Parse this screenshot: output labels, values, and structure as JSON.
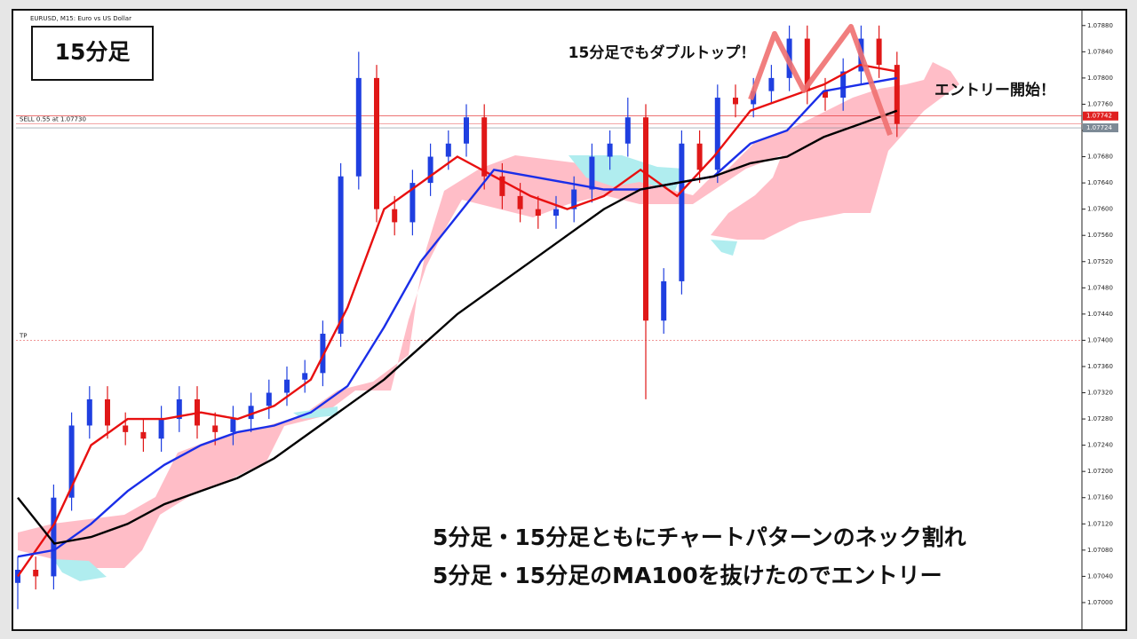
{
  "chart_data": {
    "type": "candlestick",
    "window_title": "EURUSD, M15:  Euro vs US Dollar",
    "title": "15分足",
    "annotations": [
      "15分足でもダブルトップ！",
      "エントリー開始！"
    ],
    "caption": [
      "5分足・15分足ともにチャートパターンのネック割れ",
      "5分足・15分足のMA100を抜けたのでエントリー"
    ],
    "up_color": "#1f3fe0",
    "down_color": "#e01818",
    "open": [
      1.0703,
      1.0705,
      1.0704,
      1.0716,
      1.0727,
      1.0731,
      1.0727,
      1.0726,
      1.0725,
      1.0728,
      1.0731,
      1.0727,
      1.0726,
      1.0728,
      1.073,
      1.0732,
      1.0734,
      1.0735,
      1.0741,
      1.0765,
      1.078,
      1.076,
      1.0758,
      1.0764,
      1.0768,
      1.077,
      1.0774,
      1.0765,
      1.0762,
      1.076,
      1.0759,
      1.076,
      1.0763,
      1.0768,
      1.077,
      1.0774,
      1.0743,
      1.0749,
      1.077,
      1.0766,
      1.0777,
      1.0776,
      1.0778,
      1.078,
      1.0786,
      1.0778,
      1.0777,
      1.0781,
      1.0786,
      1.0782
    ],
    "high": [
      1.0707,
      1.0707,
      1.0718,
      1.0729,
      1.0733,
      1.0733,
      1.0729,
      1.0728,
      1.073,
      1.0733,
      1.0733,
      1.0729,
      1.073,
      1.0732,
      1.0734,
      1.0736,
      1.0737,
      1.0743,
      1.0767,
      1.0784,
      1.0782,
      1.0762,
      1.0766,
      1.077,
      1.0772,
      1.0776,
      1.0776,
      1.0767,
      1.0764,
      1.0762,
      1.0762,
      1.0765,
      1.077,
      1.0772,
      1.0777,
      1.0776,
      1.0751,
      1.0772,
      1.0772,
      1.0779,
      1.0779,
      1.078,
      1.0782,
      1.0788,
      1.0788,
      1.078,
      1.0783,
      1.0788,
      1.0788,
      1.0784
    ],
    "low": [
      1.0699,
      1.0702,
      1.0702,
      1.0714,
      1.0725,
      1.0725,
      1.0724,
      1.0723,
      1.0723,
      1.0726,
      1.0725,
      1.0724,
      1.0724,
      1.0726,
      1.0728,
      1.073,
      1.0732,
      1.0733,
      1.0739,
      1.0763,
      1.0758,
      1.0756,
      1.0756,
      1.0762,
      1.0766,
      1.0768,
      1.0763,
      1.076,
      1.0758,
      1.0757,
      1.0757,
      1.0758,
      1.0761,
      1.0766,
      1.0768,
      1.0731,
      1.0741,
      1.0747,
      1.0764,
      1.0764,
      1.0774,
      1.0774,
      1.0776,
      1.0778,
      1.0776,
      1.0775,
      1.0775,
      1.0779,
      1.078,
      1.0771
    ],
    "close": [
      1.0705,
      1.0704,
      1.0716,
      1.0727,
      1.0731,
      1.0727,
      1.0726,
      1.0725,
      1.0728,
      1.0731,
      1.0727,
      1.0726,
      1.0728,
      1.073,
      1.0732,
      1.0734,
      1.0735,
      1.0741,
      1.0765,
      1.078,
      1.076,
      1.0758,
      1.0764,
      1.0768,
      1.077,
      1.0774,
      1.0765,
      1.0762,
      1.076,
      1.0759,
      1.076,
      1.0763,
      1.0768,
      1.077,
      1.0774,
      1.0743,
      1.0749,
      1.077,
      1.0766,
      1.0777,
      1.0776,
      1.0778,
      1.078,
      1.0786,
      1.0778,
      1.0777,
      1.0781,
      1.0786,
      1.0782,
      1.0773
    ],
    "series": [
      {
        "color": "#e81010",
        "values": [
          1.0704,
          1.0712,
          1.0724,
          1.0728,
          1.0728,
          1.0729,
          1.0728,
          1.073,
          1.0734,
          1.0745,
          1.076,
          1.0764,
          1.0768,
          1.0765,
          1.0762,
          1.076,
          1.0762,
          1.0766,
          1.0762,
          1.0768,
          1.0775,
          1.0777,
          1.0779,
          1.0782,
          1.0781
        ]
      },
      {
        "color": "#1a2ee8",
        "values": [
          1.0707,
          1.0708,
          1.0712,
          1.0717,
          1.0721,
          1.0724,
          1.0726,
          1.0727,
          1.0729,
          1.0733,
          1.0742,
          1.0752,
          1.0759,
          1.0766,
          1.0765,
          1.0764,
          1.0763,
          1.0763,
          1.0764,
          1.0765,
          1.077,
          1.0772,
          1.0778,
          1.0779,
          1.078
        ]
      },
      {
        "color": "#000000",
        "values": [
          1.0716,
          1.0709,
          1.071,
          1.0712,
          1.0715,
          1.0717,
          1.0719,
          1.0722,
          1.0726,
          1.073,
          1.0734,
          1.0739,
          1.0744,
          1.0748,
          1.0752,
          1.0756,
          1.076,
          1.0763,
          1.0764,
          1.0765,
          1.0767,
          1.0768,
          1.0771,
          1.0773,
          1.0775
        ]
      }
    ],
    "levels": [
      {
        "label": "SELL 0.55 at 1.07730",
        "value": 1.0773
      },
      {
        "label": "TP",
        "value": 1.074
      }
    ],
    "price_tags": [
      {
        "value": 1.07742,
        "label": "1.07742",
        "color": "#e02020"
      },
      {
        "value": 1.07724,
        "label": "1.07724",
        "color": "#7d8a96"
      }
    ],
    "ylim": [
      1.0696,
      1.079
    ],
    "yticks": [
      {
        "value": 1.0788,
        "label": "1.07880"
      },
      {
        "value": 1.0784,
        "label": "1.07840"
      },
      {
        "value": 1.078,
        "label": "1.07800"
      },
      {
        "value": 1.0776,
        "label": "1.07760"
      },
      {
        "value": 1.0772,
        "label": "1.07720"
      },
      {
        "value": 1.0768,
        "label": "1.07680"
      },
      {
        "value": 1.0764,
        "label": "1.07640"
      },
      {
        "value": 1.076,
        "label": "1.07600"
      },
      {
        "value": 1.0756,
        "label": "1.07560"
      },
      {
        "value": 1.0752,
        "label": "1.07520"
      },
      {
        "value": 1.0748,
        "label": "1.07480"
      },
      {
        "value": 1.0744,
        "label": "1.07440"
      },
      {
        "value": 1.074,
        "label": "1.07400"
      },
      {
        "value": 1.0736,
        "label": "1.07360"
      },
      {
        "value": 1.0732,
        "label": "1.07320"
      },
      {
        "value": 1.0728,
        "label": "1.07280"
      },
      {
        "value": 1.0724,
        "label": "1.07240"
      },
      {
        "value": 1.072,
        "label": "1.07200"
      },
      {
        "value": 1.0716,
        "label": "1.07160"
      },
      {
        "value": 1.0712,
        "label": "1.07120"
      },
      {
        "value": 1.0708,
        "label": "1.07080"
      },
      {
        "value": 1.0704,
        "label": "1.07040"
      },
      {
        "value": 1.07,
        "label": "1.07000"
      }
    ],
    "grid": false
  }
}
